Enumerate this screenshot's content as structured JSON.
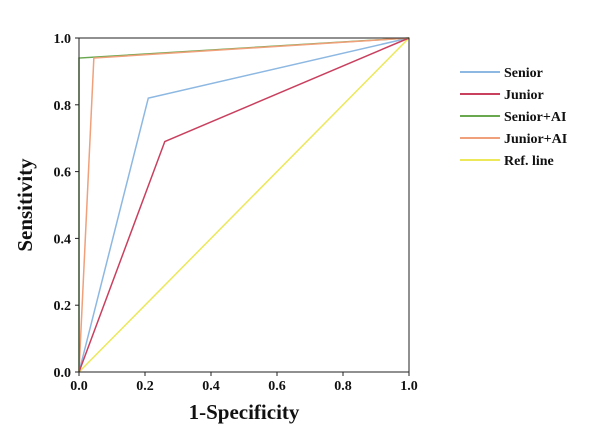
{
  "chart_data": {
    "type": "line",
    "title": "",
    "xlabel": "1-Specificity",
    "ylabel": "Sensitivity",
    "xlim": [
      0,
      1
    ],
    "ylim": [
      0,
      1
    ],
    "x_ticks": [
      "0.0",
      "0.2",
      "0.4",
      "0.6",
      "0.8",
      "1.0"
    ],
    "y_ticks": [
      "0.0",
      "0.2",
      "0.4",
      "0.6",
      "0.8",
      "1.0"
    ],
    "grid": false,
    "legend_position": "right",
    "series": [
      {
        "name": "Senior",
        "color": "#8db8e2",
        "x": [
          0,
          0.21,
          1
        ],
        "y": [
          0,
          0.82,
          1
        ]
      },
      {
        "name": "Junior",
        "color": "#c9405f",
        "x": [
          0,
          0.26,
          1
        ],
        "y": [
          0,
          0.69,
          1
        ]
      },
      {
        "name": "Senior+AI",
        "color": "#6aa84f",
        "x": [
          0,
          0,
          1
        ],
        "y": [
          0,
          0.94,
          1
        ]
      },
      {
        "name": "Junior+AI",
        "color": "#f0a07a",
        "x": [
          0,
          0.045,
          1
        ],
        "y": [
          0,
          0.94,
          1
        ]
      },
      {
        "name": "Ref. line",
        "color": "#ece85a",
        "x": [
          0,
          1
        ],
        "y": [
          0,
          1
        ]
      }
    ]
  }
}
